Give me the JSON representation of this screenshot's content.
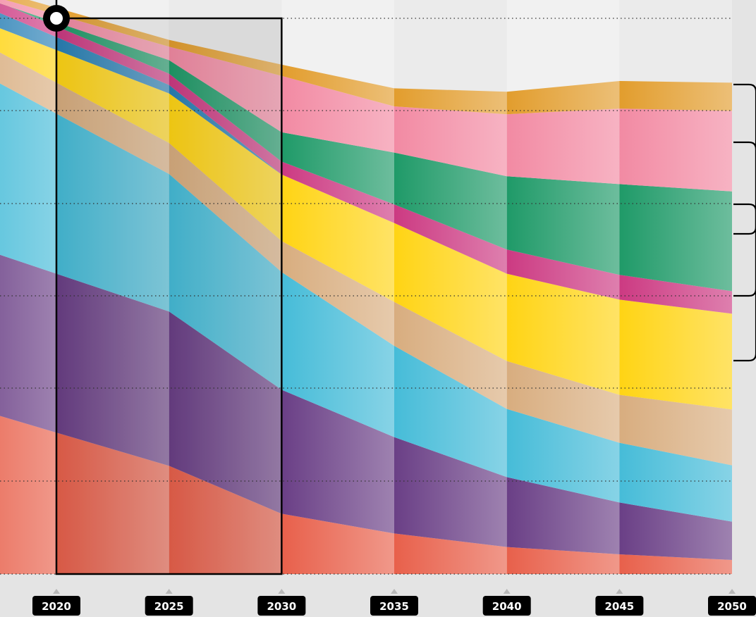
{
  "chart_data": {
    "type": "area",
    "stacked": true,
    "title": "",
    "xlabel": "",
    "ylabel": "",
    "x": [
      2020,
      2025,
      2030,
      2035,
      2040,
      2045,
      2050
    ],
    "x_extent": [
      2015,
      2050
    ],
    "ylim": [
      0,
      100
    ],
    "grid": "horizontal dotted",
    "legend": "none",
    "highlight_range": [
      2020,
      2030
    ],
    "series": [
      {
        "color": "#e8604b",
        "values": [
          25.1,
          19.2,
          10.7,
          7.2,
          4.8,
          3.5,
          2.5
        ]
      },
      {
        "color": "#6a3f86",
        "values": [
          28.2,
          27.4,
          22.0,
          17.1,
          12.4,
          9.2,
          6.8
        ]
      },
      {
        "color": "#46bcd8",
        "values": [
          28.4,
          24.4,
          20.9,
          16.2,
          12.1,
          10.6,
          10.0
        ]
      },
      {
        "color": "#d8ad7f",
        "values": [
          5.5,
          5.5,
          5.5,
          7.8,
          8.5,
          8.5,
          9.9
        ]
      },
      {
        "color": "#ffd414",
        "values": [
          5.8,
          8.8,
          11.8,
          14.0,
          15.5,
          16.9,
          17.0
        ]
      },
      {
        "color": "#2980b5",
        "values": [
          2.3,
          1.5,
          0.0,
          0.0,
          0.0,
          0.0,
          0.0
        ]
      },
      {
        "color": "#cc3a82",
        "values": [
          1.9,
          2.0,
          2.3,
          3.3,
          4.3,
          4.4,
          4.0
        ]
      },
      {
        "color": "#1f9a68",
        "values": [
          0.7,
          2.4,
          5.2,
          9.2,
          13.0,
          16.1,
          17.7
        ]
      },
      {
        "color": "#f28aa3",
        "values": [
          1.4,
          2.4,
          10.0,
          8.2,
          11.0,
          13.4,
          14.3
        ]
      },
      {
        "color": "#e29d2d",
        "values": [
          1.2,
          1.2,
          2.0,
          3.2,
          4.0,
          4.9,
          5.0
        ]
      }
    ]
  }
}
